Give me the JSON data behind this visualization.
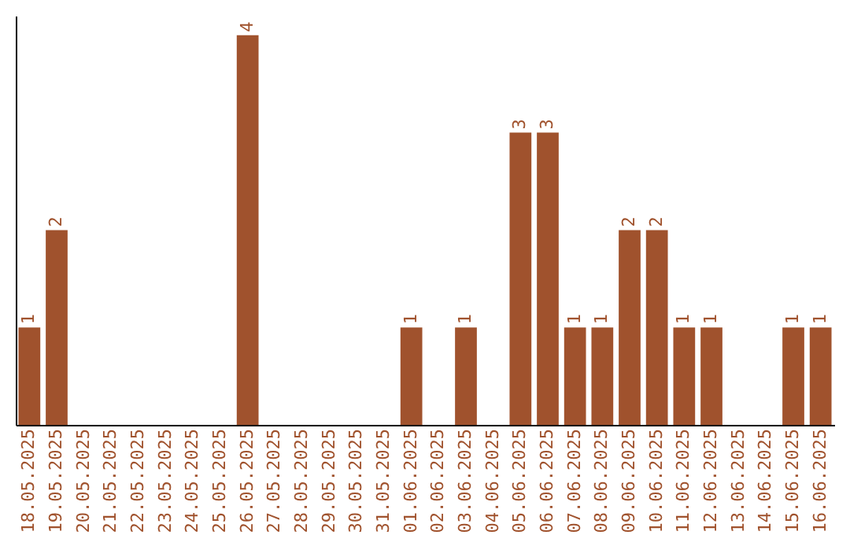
{
  "chart_data": {
    "type": "bar",
    "categories": [
      "18.05.2025",
      "19.05.2025",
      "20.05.2025",
      "21.05.2025",
      "22.05.2025",
      "23.05.2025",
      "24.05.2025",
      "25.05.2025",
      "26.05.2025",
      "27.05.2025",
      "28.05.2025",
      "29.05.2025",
      "30.05.2025",
      "31.05.2025",
      "01.06.2025",
      "02.06.2025",
      "03.06.2025",
      "04.06.2025",
      "05.06.2025",
      "06.06.2025",
      "07.06.2025",
      "08.06.2025",
      "09.06.2025",
      "10.06.2025",
      "11.06.2025",
      "12.06.2025",
      "13.06.2025",
      "14.06.2025",
      "15.06.2025",
      "16.06.2025"
    ],
    "values": [
      1,
      2,
      0,
      0,
      0,
      0,
      0,
      0,
      4,
      0,
      0,
      0,
      0,
      0,
      1,
      0,
      1,
      0,
      3,
      3,
      1,
      1,
      2,
      2,
      1,
      1,
      0,
      0,
      1,
      1
    ],
    "value_labels": [
      "1",
      "2",
      null,
      null,
      null,
      null,
      null,
      null,
      "4",
      null,
      null,
      null,
      null,
      null,
      "1",
      null,
      "1",
      null,
      "3",
      "3",
      "1",
      "1",
      "2",
      "2",
      "1",
      "1",
      null,
      null,
      "1",
      "1"
    ],
    "color": "#a0522d",
    "ylim": [
      0,
      4.2
    ],
    "tick_labels": "x",
    "grid": false
  }
}
